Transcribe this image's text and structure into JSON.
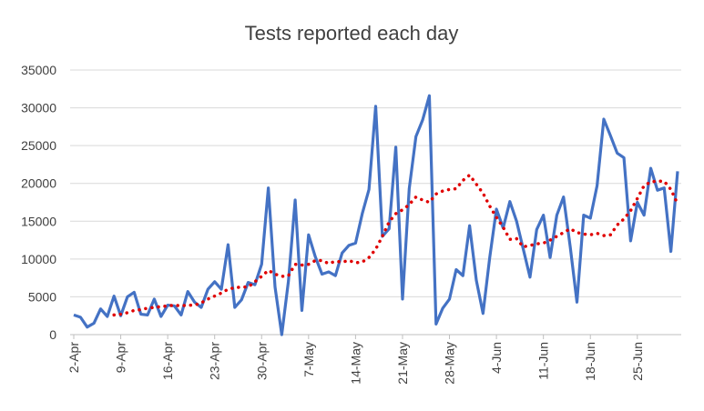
{
  "chart_data": {
    "type": "line",
    "title": "Tests reported each day",
    "xlabel": "",
    "ylabel": "",
    "ylim": [
      0,
      35000
    ],
    "y_ticks": [
      "0",
      "5000",
      "10000",
      "15000",
      "20000",
      "25000",
      "30000",
      "35000"
    ],
    "x_ticks": [
      "2-Apr",
      "9-Apr",
      "16-Apr",
      "23-Apr",
      "30-Apr",
      "7-May",
      "14-May",
      "21-May",
      "28-May",
      "4-Jun",
      "11-Jun",
      "18-Jun",
      "25-Jun"
    ],
    "grid": "horizontal",
    "legend": "none",
    "x_start": "2-Apr",
    "series": [
      {
        "style": "solid",
        "color": "#4472C4",
        "values": [
          2600,
          2300,
          1000,
          1500,
          3400,
          2400,
          5100,
          2500,
          5000,
          5600,
          2700,
          2600,
          4700,
          2400,
          3900,
          3800,
          2600,
          5700,
          4300,
          3600,
          6000,
          7000,
          6000,
          11900,
          3600,
          4600,
          6900,
          6600,
          9300,
          19400,
          6300,
          0,
          7100,
          17800,
          3200,
          13200,
          10300,
          8000,
          8300,
          7800,
          10800,
          11800,
          12100,
          16000,
          19200,
          30200,
          13000,
          14000,
          24800,
          4700,
          19300,
          26200,
          28400,
          31600,
          1400,
          3500,
          4700,
          8600,
          7800,
          14400,
          7200,
          2800,
          10200,
          16600,
          14100,
          17600,
          15000,
          11300,
          7600,
          13900,
          15800,
          10200,
          15800,
          18200,
          11600,
          4300,
          15800,
          15400,
          19700,
          28500,
          26300,
          24000,
          23400,
          12400,
          17500,
          15800,
          22000,
          19100,
          19400,
          11000,
          21600
        ]
      },
      {
        "style": "dotted",
        "color": "#E00000",
        "values": [
          null,
          null,
          null,
          null,
          null,
          null,
          2600,
          2700,
          2900,
          3200,
          3300,
          3500,
          3600,
          3700,
          3800,
          3900,
          3800,
          3900,
          3900,
          4200,
          4700,
          5100,
          5500,
          6000,
          6200,
          6300,
          6300,
          7000,
          7700,
          8500,
          8000,
          7700,
          7800,
          9300,
          9200,
          9300,
          9800,
          9800,
          9400,
          9700,
          9600,
          9800,
          9500,
          9600,
          10200,
          11300,
          13000,
          14900,
          16000,
          16500,
          17200,
          18200,
          17800,
          17500,
          18600,
          19000,
          19200,
          19300,
          20400,
          21100,
          19900,
          18700,
          17000,
          15500,
          14200,
          12600,
          12700,
          11600,
          11800,
          12000,
          12100,
          12500,
          13000,
          13500,
          14000,
          13500,
          13300,
          13200,
          13400,
          13100,
          13200,
          14500,
          15300,
          16400,
          18000,
          19700,
          20200,
          20300,
          20300,
          19200,
          17300
        ]
      }
    ]
  }
}
